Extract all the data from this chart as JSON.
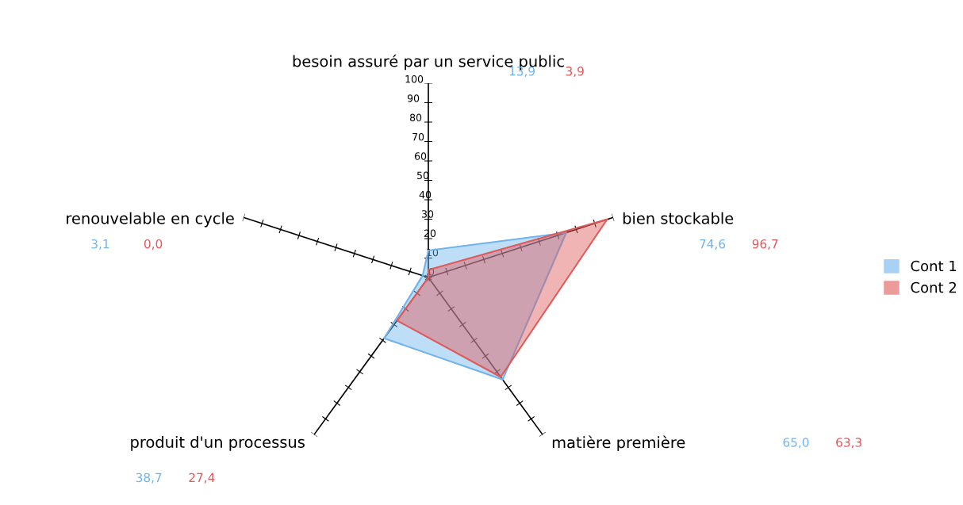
{
  "chart_data": {
    "type": "radar",
    "categories": [
      "besoin assuré par un service public",
      "bien stockable",
      "matière première",
      "produit d'un processus",
      "renouvelable en cycle"
    ],
    "series": [
      {
        "name": "Cont 1",
        "color": "#6fb3ee",
        "values": [
          13.9,
          74.6,
          65.0,
          38.7,
          3.1
        ]
      },
      {
        "name": "Cont 2",
        "color": "#e05a5a",
        "values": [
          3.9,
          96.7,
          63.3,
          27.4,
          0.0
        ]
      }
    ],
    "annotations": [
      "13,9",
      "3,9",
      "74,6",
      "96,7",
      "65,0",
      "63,3",
      "38,7",
      "27,4",
      "3,1",
      "0,0"
    ],
    "ylim": [
      0,
      100
    ],
    "yticks": [
      0,
      10,
      20,
      30,
      40,
      50,
      60,
      70,
      80,
      90,
      100
    ],
    "grid": false,
    "legend": "right"
  }
}
